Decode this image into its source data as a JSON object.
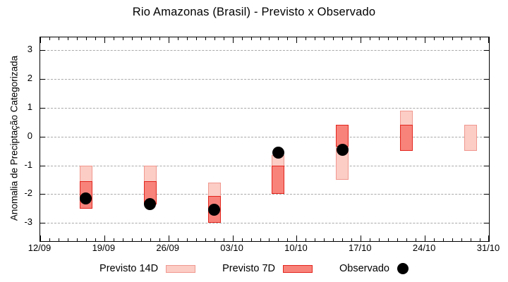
{
  "title": "Rio Amazonas (Brasil) - Previsto x Observado",
  "y_axis": {
    "label": "Anomalia de Preciptação Categorizada",
    "tick_labels": [
      "3",
      "2",
      "1",
      "0",
      "-1",
      "-2",
      "-3"
    ]
  },
  "x_axis": {
    "tick_labels": [
      "12/09",
      "19/09",
      "26/09",
      "03/10",
      "10/10",
      "17/10",
      "24/10",
      "31/10"
    ]
  },
  "legend": {
    "items": [
      {
        "label": "Previsto 14D",
        "swatch": "light-range"
      },
      {
        "label": "Previsto 7D",
        "swatch": "dark-range"
      },
      {
        "label": "Observado",
        "swatch": "black-dot"
      }
    ]
  },
  "colors": {
    "previsto14_fill": "#fbcdc5",
    "previsto14_border": "#f0988f",
    "previsto7_fill": "#f7837b",
    "previsto7_border": "#e3261d",
    "observado": "#000000",
    "grid": "#a9a9a9",
    "axis": "#000000"
  },
  "chart_data": {
    "type": "bar",
    "subtype": "floating-range-bars-with-observed-scatter",
    "title": "Rio Amazonas (Brasil) - Previsto x Observado",
    "xlabel": "",
    "ylabel": "Anomalia de Preciptação Categorizada",
    "ylim": [
      -3.63,
      3.45
    ],
    "grid_values": [
      3,
      2,
      1,
      0,
      -1,
      -2,
      -3
    ],
    "x_domain_days": [
      0,
      49
    ],
    "x_major_tick_days": [
      0,
      7,
      14,
      21,
      28,
      35,
      42,
      49
    ],
    "x_tick_labels": [
      "12/09",
      "19/09",
      "26/09",
      "03/10",
      "10/10",
      "17/10",
      "24/10",
      "31/10"
    ],
    "x_minor_tick_interval_days": 1,
    "categories": [
      "17/09",
      "24/09",
      "01/10",
      "08/10",
      "15/10",
      "22/10",
      "29/10"
    ],
    "category_days": [
      5,
      12,
      19,
      26,
      33,
      40,
      47
    ],
    "series": [
      {
        "name": "Previsto 14D",
        "kind": "range",
        "ranges": [
          [
            -2.5,
            -1.0
          ],
          [
            -2.35,
            -1.0
          ],
          [
            -3.0,
            -1.6
          ],
          [
            -2.0,
            -0.65
          ],
          [
            -1.5,
            0.4
          ],
          [
            -0.5,
            0.9
          ],
          [
            -0.5,
            0.4
          ]
        ]
      },
      {
        "name": "Previsto 7D",
        "kind": "range",
        "ranges": [
          [
            -2.5,
            -1.55
          ],
          [
            -2.35,
            -1.55
          ],
          [
            -3.0,
            -2.05
          ],
          [
            -2.0,
            -1.0
          ],
          [
            -0.35,
            0.4
          ],
          [
            -0.5,
            0.4
          ],
          null
        ]
      },
      {
        "name": "Observado",
        "kind": "scatter",
        "values": [
          -2.15,
          -2.35,
          -2.55,
          -0.55,
          -0.45,
          null,
          null
        ]
      }
    ],
    "legend_position": "bottom",
    "grid": "horizontal-dashed"
  }
}
